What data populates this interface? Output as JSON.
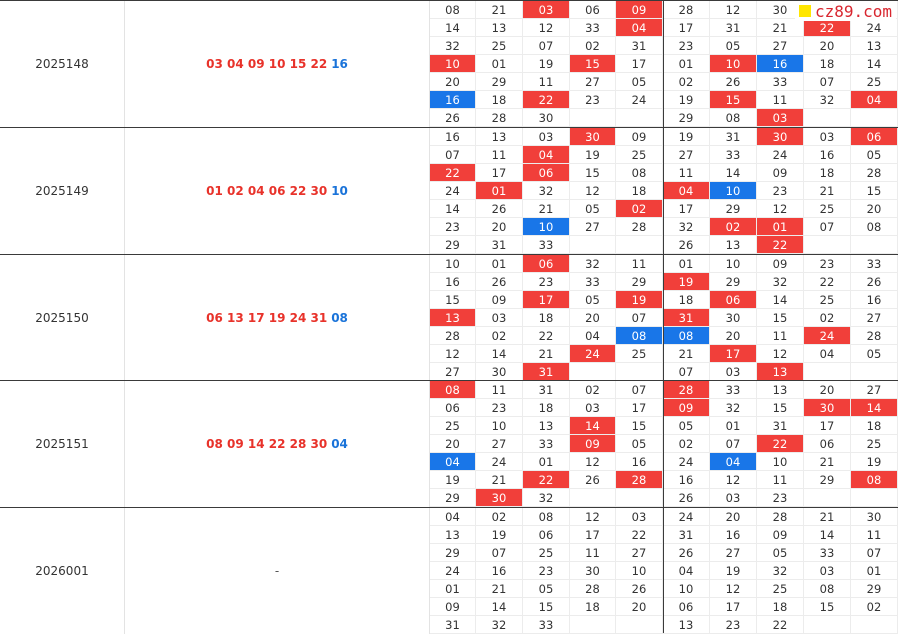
{
  "logo": {
    "text": "cz89.com"
  },
  "colors": {
    "red": "#f13f3a",
    "blue": "#1976e8"
  },
  "rows": [
    {
      "issue": "2025148",
      "red": "03 04 09 10 15 22",
      "blue": "16",
      "grid": [
        [
          "08",
          "21",
          "03",
          "06",
          "09",
          "28",
          "12",
          "30",
          "",
          ""
        ],
        [
          "14",
          "13",
          "12",
          "33",
          "04",
          "17",
          "31",
          "21",
          "22",
          "24"
        ],
        [
          "32",
          "25",
          "07",
          "02",
          "31",
          "23",
          "05",
          "27",
          "20",
          "13"
        ],
        [
          "10",
          "01",
          "19",
          "15",
          "17",
          "01",
          "10",
          "16",
          "18",
          "14"
        ],
        [
          "20",
          "29",
          "11",
          "27",
          "05",
          "02",
          "26",
          "33",
          "07",
          "25"
        ],
        [
          "16",
          "18",
          "22",
          "23",
          "24",
          "19",
          "15",
          "11",
          "32",
          "04"
        ],
        [
          "26",
          "28",
          "30",
          "",
          "",
          "29",
          "08",
          "03",
          "",
          ""
        ]
      ],
      "marks": [
        [
          "",
          "",
          "r",
          "",
          "r",
          "",
          "",
          "",
          "",
          ""
        ],
        [
          "",
          "",
          "",
          "",
          "r",
          "",
          "",
          "",
          "r",
          ""
        ],
        [
          "",
          "",
          "",
          "",
          "",
          "",
          "",
          "",
          "",
          ""
        ],
        [
          "r",
          "",
          "",
          "r",
          "",
          "",
          "r",
          "b",
          "",
          ""
        ],
        [
          "",
          "",
          "",
          "",
          "",
          "",
          "",
          "",
          "",
          ""
        ],
        [
          "b",
          "",
          "r",
          "",
          "",
          "",
          "r",
          "",
          "",
          "r"
        ],
        [
          "",
          "",
          "",
          "",
          "",
          "",
          "",
          "r",
          "",
          ""
        ]
      ]
    },
    {
      "issue": "2025149",
      "red": "01 02 04 06 22 30",
      "blue": "10",
      "grid": [
        [
          "16",
          "13",
          "03",
          "30",
          "09",
          "19",
          "31",
          "30",
          "03",
          "06"
        ],
        [
          "07",
          "11",
          "04",
          "19",
          "25",
          "27",
          "33",
          "24",
          "16",
          "05"
        ],
        [
          "22",
          "17",
          "06",
          "15",
          "08",
          "11",
          "14",
          "09",
          "18",
          "28"
        ],
        [
          "24",
          "01",
          "32",
          "12",
          "18",
          "04",
          "10",
          "23",
          "21",
          "15"
        ],
        [
          "14",
          "26",
          "21",
          "05",
          "02",
          "17",
          "29",
          "12",
          "25",
          "20"
        ],
        [
          "23",
          "20",
          "10",
          "27",
          "28",
          "32",
          "02",
          "01",
          "07",
          "08"
        ],
        [
          "29",
          "31",
          "33",
          "",
          "",
          "26",
          "13",
          "22",
          "",
          ""
        ]
      ],
      "marks": [
        [
          "",
          "",
          "",
          "r",
          "",
          "",
          "",
          "r",
          "",
          "r"
        ],
        [
          "",
          "",
          "r",
          "",
          "",
          "",
          "",
          "",
          "",
          ""
        ],
        [
          "r",
          "",
          "r",
          "",
          "",
          "",
          "",
          "",
          "",
          ""
        ],
        [
          "",
          "r",
          "",
          "",
          "",
          "r",
          "b",
          "",
          "",
          ""
        ],
        [
          "",
          "",
          "",
          "",
          "r",
          "",
          "",
          "",
          "",
          ""
        ],
        [
          "",
          "",
          "b",
          "",
          "",
          "",
          "r",
          "r",
          "",
          ""
        ],
        [
          "",
          "",
          "",
          "",
          "",
          "",
          "",
          "r",
          "",
          ""
        ]
      ]
    },
    {
      "issue": "2025150",
      "red": "06 13 17 19 24 31",
      "blue": "08",
      "grid": [
        [
          "10",
          "01",
          "06",
          "32",
          "11",
          "01",
          "10",
          "09",
          "23",
          "33"
        ],
        [
          "16",
          "26",
          "23",
          "33",
          "29",
          "19",
          "29",
          "32",
          "22",
          "26"
        ],
        [
          "15",
          "09",
          "17",
          "05",
          "19",
          "18",
          "06",
          "14",
          "25",
          "16"
        ],
        [
          "13",
          "03",
          "18",
          "20",
          "07",
          "31",
          "30",
          "15",
          "02",
          "27"
        ],
        [
          "28",
          "02",
          "22",
          "04",
          "08",
          "08",
          "20",
          "11",
          "24",
          "28"
        ],
        [
          "12",
          "14",
          "21",
          "24",
          "25",
          "21",
          "17",
          "12",
          "04",
          "05"
        ],
        [
          "27",
          "30",
          "31",
          "",
          "",
          "07",
          "03",
          "13",
          "",
          ""
        ]
      ],
      "marks": [
        [
          "",
          "",
          "r",
          "",
          "",
          "",
          "",
          "",
          "",
          ""
        ],
        [
          "",
          "",
          "",
          "",
          "",
          "r",
          "",
          "",
          "",
          ""
        ],
        [
          "",
          "",
          "r",
          "",
          "r",
          "",
          "r",
          "",
          "",
          ""
        ],
        [
          "r",
          "",
          "",
          "",
          "",
          "r",
          "",
          "",
          "",
          ""
        ],
        [
          "",
          "",
          "",
          "",
          "b",
          "b",
          "",
          "",
          "r",
          ""
        ],
        [
          "",
          "",
          "",
          "r",
          "",
          "",
          "r",
          "",
          "",
          ""
        ],
        [
          "",
          "",
          "r",
          "",
          "",
          "",
          "",
          "r",
          "",
          ""
        ]
      ]
    },
    {
      "issue": "2025151",
      "red": "08 09 14 22 28 30",
      "blue": "04",
      "grid": [
        [
          "08",
          "11",
          "31",
          "02",
          "07",
          "28",
          "33",
          "13",
          "20",
          "27"
        ],
        [
          "06",
          "23",
          "18",
          "03",
          "17",
          "09",
          "32",
          "15",
          "30",
          "14"
        ],
        [
          "25",
          "10",
          "13",
          "14",
          "15",
          "05",
          "01",
          "31",
          "17",
          "18"
        ],
        [
          "20",
          "27",
          "33",
          "09",
          "05",
          "02",
          "07",
          "22",
          "06",
          "25"
        ],
        [
          "04",
          "24",
          "01",
          "12",
          "16",
          "24",
          "04",
          "10",
          "21",
          "19"
        ],
        [
          "19",
          "21",
          "22",
          "26",
          "28",
          "16",
          "12",
          "11",
          "29",
          "08"
        ],
        [
          "29",
          "30",
          "32",
          "",
          "",
          "26",
          "03",
          "23",
          "",
          ""
        ]
      ],
      "marks": [
        [
          "r",
          "",
          "",
          "",
          "",
          "r",
          "",
          "",
          "",
          ""
        ],
        [
          "",
          "",
          "",
          "",
          "",
          "r",
          "",
          "",
          "r",
          "r"
        ],
        [
          "",
          "",
          "",
          "r",
          "",
          "",
          "",
          "",
          "",
          ""
        ],
        [
          "",
          "",
          "",
          "r",
          "",
          "",
          "",
          "r",
          "",
          ""
        ],
        [
          "b",
          "",
          "",
          "",
          "",
          "",
          "b",
          "",
          "",
          ""
        ],
        [
          "",
          "",
          "r",
          "",
          "r",
          "",
          "",
          "",
          "",
          "r"
        ],
        [
          "",
          "r",
          "",
          "",
          "",
          "",
          "",
          "",
          "",
          ""
        ]
      ]
    },
    {
      "issue": "2026001",
      "red": "",
      "blue": "",
      "dash": "-",
      "grid": [
        [
          "04",
          "02",
          "08",
          "12",
          "03",
          "24",
          "20",
          "28",
          "21",
          "30"
        ],
        [
          "13",
          "19",
          "06",
          "17",
          "22",
          "31",
          "16",
          "09",
          "14",
          "11"
        ],
        [
          "29",
          "07",
          "25",
          "11",
          "27",
          "26",
          "27",
          "05",
          "33",
          "07"
        ],
        [
          "24",
          "16",
          "23",
          "30",
          "10",
          "04",
          "19",
          "32",
          "03",
          "01"
        ],
        [
          "01",
          "21",
          "05",
          "28",
          "26",
          "10",
          "12",
          "25",
          "08",
          "29"
        ],
        [
          "09",
          "14",
          "15",
          "18",
          "20",
          "06",
          "17",
          "18",
          "15",
          "02"
        ],
        [
          "31",
          "32",
          "33",
          "",
          "",
          "13",
          "23",
          "22",
          "",
          ""
        ]
      ],
      "marks": [
        [
          "",
          "",
          "",
          "",
          "",
          "",
          "",
          "",
          "",
          ""
        ],
        [
          "",
          "",
          "",
          "",
          "",
          "",
          "",
          "",
          "",
          ""
        ],
        [
          "",
          "",
          "",
          "",
          "",
          "",
          "",
          "",
          "",
          ""
        ],
        [
          "",
          "",
          "",
          "",
          "",
          "",
          "",
          "",
          "",
          ""
        ],
        [
          "",
          "",
          "",
          "",
          "",
          "",
          "",
          "",
          "",
          ""
        ],
        [
          "",
          "",
          "",
          "",
          "",
          "",
          "",
          "",
          "",
          ""
        ],
        [
          "",
          "",
          "",
          "",
          "",
          "",
          "",
          "",
          "",
          ""
        ]
      ]
    }
  ]
}
